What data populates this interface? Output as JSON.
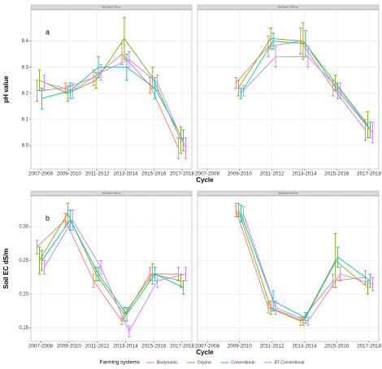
{
  "chart_data": [
    {
      "type": "line",
      "panel_label": "a",
      "strip": "Soil Depth: 0-20 cm",
      "ylabel": "pH value",
      "xlabel": "Cycle",
      "legend_title": "Farming systems",
      "legend_position": "bottom",
      "categories": [
        "2007-2008",
        "2009-2010",
        "2011-2012",
        "2013-2014",
        "2015-2016",
        "2017-2018"
      ],
      "ylim": [
        7.91,
        8.52
      ],
      "yticks": [
        {
          "value": 8,
          "label": "8.0"
        },
        8.1,
        8.2,
        8.3,
        8.4
      ],
      "grid": true,
      "series": [
        {
          "name": "Biodynamic",
          "color": "#F8766D",
          "values": [
            8.21,
            8.22,
            8.26,
            8.35,
            8.23,
            7.99
          ],
          "errors": [
            0.04,
            0.02,
            0.03,
            0.04,
            0.03,
            0.04
          ]
        },
        {
          "name": "Organic",
          "color": "#7CAE00",
          "values": [
            8.25,
            8.2,
            8.25,
            8.41,
            8.26,
            8.02
          ],
          "errors": [
            0.04,
            0.03,
            0.03,
            0.08,
            0.04,
            0.05
          ]
        },
        {
          "name": "Conventional",
          "color": "#00BFC4",
          "values": [
            8.18,
            8.21,
            8.3,
            8.3,
            8.22,
            8.02
          ],
          "errors": [
            0.04,
            0.03,
            0.04,
            0.05,
            0.04,
            0.04
          ]
        },
        {
          "name": "BT-Conventional",
          "color": "#C77CFF",
          "values": [
            8.24,
            8.21,
            8.28,
            8.33,
            8.24,
            7.99
          ],
          "errors": [
            0.03,
            0.03,
            0.03,
            0.03,
            0.03,
            0.04
          ]
        }
      ]
    },
    {
      "type": "line",
      "strip": "Soil Depth: 20-40 cm",
      "categories": [
        "2007-2008",
        "2009-2010",
        "2011-2012",
        "2013-2014",
        "2015-2016",
        "2017-2018"
      ],
      "ylim": [
        7.91,
        8.52
      ],
      "yticks": [
        8,
        8.1,
        8.2,
        8.3,
        8.4
      ],
      "grid": true,
      "series": [
        {
          "name": "Biodynamic",
          "color": "#F8766D",
          "values": [
            null,
            8.24,
            8.38,
            8.4,
            8.22,
            8.06
          ],
          "errors": [
            null,
            0.02,
            0.04,
            0.05,
            0.03,
            0.04
          ]
        },
        {
          "name": "Organic",
          "color": "#7CAE00",
          "values": [
            null,
            8.22,
            8.41,
            8.4,
            8.24,
            8.08
          ],
          "errors": [
            null,
            0.03,
            0.04,
            0.07,
            0.03,
            0.05
          ]
        },
        {
          "name": "Conventional",
          "color": "#00BFC4",
          "values": [
            null,
            8.2,
            8.4,
            8.39,
            8.21,
            8.06
          ],
          "errors": [
            null,
            0.02,
            0.03,
            0.05,
            0.03,
            0.03
          ]
        },
        {
          "name": "BT-Conventional",
          "color": "#C77CFF",
          "values": [
            null,
            8.21,
            8.34,
            8.34,
            8.21,
            8.05
          ],
          "errors": [
            null,
            0.02,
            0.04,
            0.04,
            0.03,
            0.04
          ]
        }
      ]
    },
    {
      "type": "line",
      "panel_label": "b",
      "strip": "Soil Depth: 0-20 cm",
      "ylabel": "Soil EC dS/m",
      "xlabel": "Cycle",
      "categories": [
        "2007-2008",
        "2009-2010",
        "2011-2012",
        "2013-2014",
        "2015-2016",
        "2017-2018"
      ],
      "ylim": [
        0.13,
        0.346
      ],
      "yticks": [
        0.15,
        {
          "value": 0.2,
          "label": "0.20"
        },
        0.25,
        {
          "value": 0.3,
          "label": "0.30"
        }
      ],
      "grid": true,
      "series": [
        {
          "name": "Biodynamic",
          "color": "#F8766D",
          "values": [
            0.27,
            0.31,
            0.22,
            0.16,
            0.23,
            0.23
          ],
          "errors": [
            0.01,
            0.01,
            0.01,
            0.005,
            0.01,
            0.01
          ]
        },
        {
          "name": "Organic",
          "color": "#7CAE00",
          "values": [
            0.25,
            0.32,
            0.23,
            0.17,
            0.23,
            0.22
          ],
          "errors": [
            0.02,
            0.015,
            0.01,
            0.01,
            0.015,
            0.01
          ]
        },
        {
          "name": "Conventional",
          "color": "#00BFC4",
          "values": [
            0.25,
            0.31,
            0.23,
            0.17,
            0.23,
            0.21
          ],
          "errors": [
            0.015,
            0.015,
            0.01,
            0.01,
            0.01,
            0.01
          ]
        },
        {
          "name": "BT-Conventional",
          "color": "#C77CFF",
          "values": [
            0.24,
            0.31,
            0.24,
            0.145,
            0.22,
            0.23
          ],
          "errors": [
            0.01,
            0.015,
            0.01,
            0.008,
            0.01,
            0.01
          ]
        }
      ]
    },
    {
      "type": "line",
      "strip": "Soil Depth: 20-40 cm",
      "categories": [
        "2007-2008",
        "2009-2010",
        "2011-2012",
        "2013-2014",
        "2015-2016",
        "2017-2018"
      ],
      "ylim": [
        0.13,
        0.346
      ],
      "yticks": [
        0.15,
        0.2,
        0.25,
        0.3
      ],
      "grid": true,
      "series": [
        {
          "name": "Biodynamic",
          "color": "#F8766D",
          "values": [
            null,
            0.325,
            0.18,
            0.16,
            0.22,
            0.225
          ],
          "errors": [
            null,
            0.01,
            0.008,
            0.006,
            0.01,
            0.01
          ]
        },
        {
          "name": "Organic",
          "color": "#7CAE00",
          "values": [
            null,
            0.325,
            0.18,
            0.16,
            0.25,
            0.21
          ],
          "errors": [
            null,
            0.01,
            0.01,
            0.006,
            0.04,
            0.01
          ]
        },
        {
          "name": "Conventional",
          "color": "#00BFC4",
          "values": [
            null,
            0.32,
            0.19,
            0.165,
            0.255,
            0.22
          ],
          "errors": [
            null,
            0.012,
            0.015,
            0.008,
            0.015,
            0.01
          ]
        },
        {
          "name": "BT-Conventional",
          "color": "#C77CFF",
          "values": [
            null,
            0.32,
            0.18,
            0.16,
            0.23,
            0.215
          ],
          "errors": [
            null,
            0.01,
            0.01,
            0.006,
            0.01,
            0.01
          ]
        }
      ]
    }
  ]
}
